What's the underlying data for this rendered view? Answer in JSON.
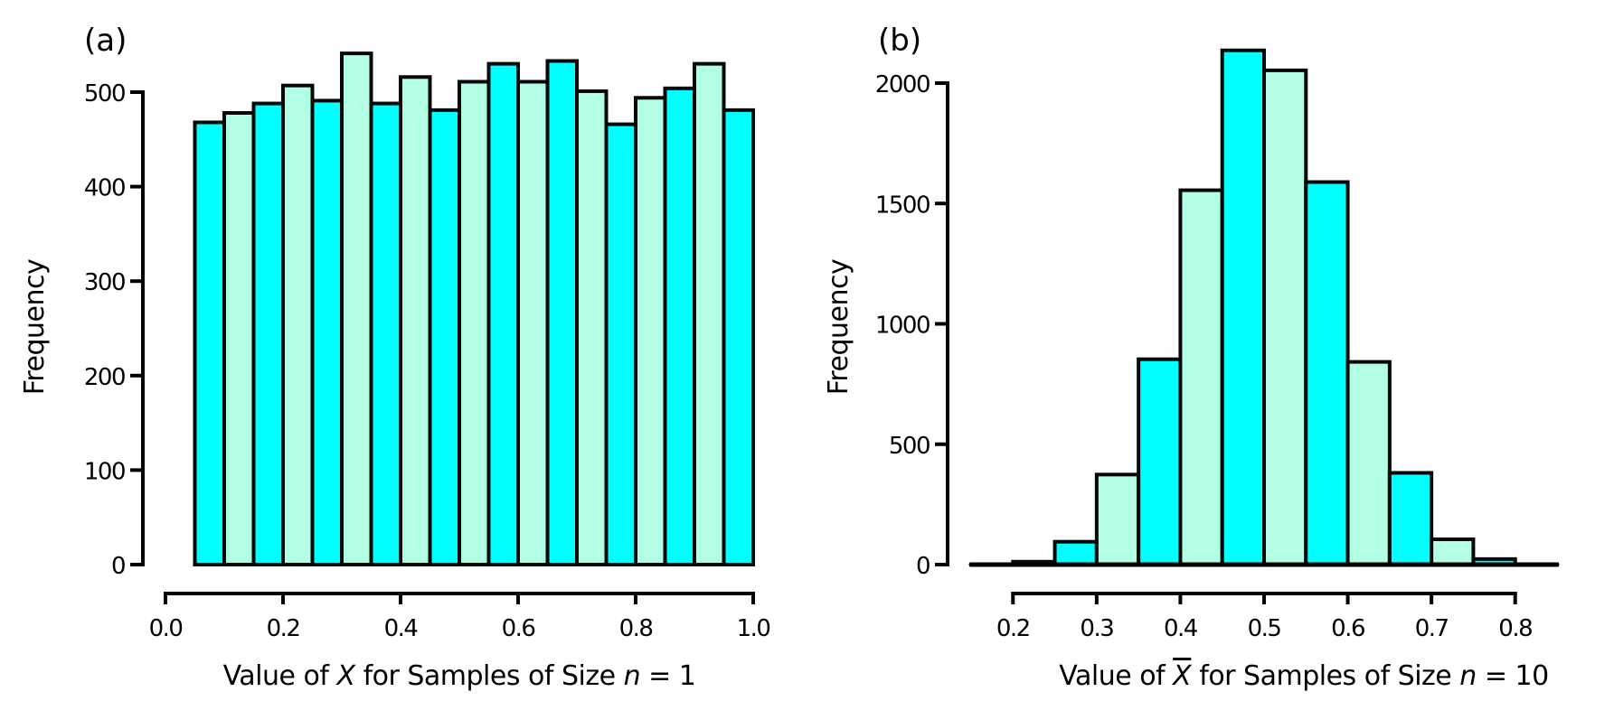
{
  "colors": {
    "bar_primary": "#00FFFF",
    "bar_alternate": "#B3FFE3",
    "outline": "#000000"
  },
  "chart_data": [
    {
      "type": "bar",
      "panel_label": "(a)",
      "title": "",
      "xlabel_parts": [
        {
          "text": "Value of ",
          "italic": false
        },
        {
          "text": "X",
          "italic": true
        },
        {
          "text": " for Samples of Size ",
          "italic": false
        },
        {
          "text": "n",
          "italic": true
        },
        {
          "text": " = 1",
          "italic": false
        }
      ],
      "xlabel": "Value of X for Samples of Size n = 1",
      "ylabel": "Frequency",
      "xlim": [
        0.0,
        1.0
      ],
      "ylim": [
        0,
        500
      ],
      "xticks": [
        0.0,
        0.2,
        0.4,
        0.6,
        0.8,
        1.0
      ],
      "xtick_labels": [
        "0.0",
        "0.2",
        "0.4",
        "0.6",
        "0.8",
        "1.0"
      ],
      "yticks": [
        0,
        100,
        200,
        300,
        400,
        500
      ],
      "ytick_labels": [
        "0",
        "100",
        "200",
        "300",
        "400",
        "500"
      ],
      "bin_edges": [
        0.05,
        0.1,
        0.15,
        0.2,
        0.25,
        0.3,
        0.35,
        0.4,
        0.45,
        0.5,
        0.55,
        0.6,
        0.65,
        0.7,
        0.75,
        0.8,
        0.85,
        0.9,
        0.95,
        1.0
      ],
      "values": [
        468,
        478,
        488,
        507,
        491,
        541,
        488,
        516,
        481,
        511,
        530,
        511,
        533,
        501,
        466,
        494,
        504,
        530,
        481
      ],
      "grid": false,
      "legend": "none"
    },
    {
      "type": "bar",
      "panel_label": "(b)",
      "title": "",
      "xlabel_parts": [
        {
          "text": "Value of ",
          "italic": false
        },
        {
          "text": "X",
          "italic": true,
          "overline": true
        },
        {
          "text": " for Samples of Size ",
          "italic": false
        },
        {
          "text": "n",
          "italic": true
        },
        {
          "text": " = 10",
          "italic": false
        }
      ],
      "xlabel": "Value of X̄ for Samples of Size n = 10",
      "ylabel": "Frequency",
      "xlim": [
        0.15,
        0.85
      ],
      "ylim": [
        0,
        2000
      ],
      "xticks": [
        0.2,
        0.3,
        0.4,
        0.5,
        0.6,
        0.7,
        0.8
      ],
      "xtick_labels": [
        "0.2",
        "0.3",
        "0.4",
        "0.5",
        "0.6",
        "0.7",
        "0.8"
      ],
      "yticks": [
        0,
        500,
        1000,
        1500,
        2000
      ],
      "ytick_labels": [
        "0",
        "500",
        "1000",
        "1500",
        "2000"
      ],
      "bin_edges": [
        0.15,
        0.2,
        0.25,
        0.3,
        0.35,
        0.4,
        0.45,
        0.5,
        0.55,
        0.6,
        0.65,
        0.7,
        0.75,
        0.8,
        0.85
      ],
      "values": [
        1,
        12,
        95,
        374,
        853,
        1555,
        2136,
        2053,
        1589,
        842,
        381,
        105,
        23,
        1
      ],
      "grid": false,
      "legend": "none"
    }
  ]
}
